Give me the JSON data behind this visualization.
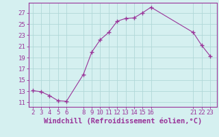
{
  "x": [
    2,
    3,
    4,
    5,
    6,
    8,
    9,
    10,
    11,
    12,
    13,
    14,
    15,
    16,
    21,
    22,
    23
  ],
  "y": [
    13.1,
    12.9,
    12.2,
    11.3,
    11.2,
    16.0,
    20.0,
    22.2,
    23.5,
    25.5,
    26.0,
    26.1,
    27.0,
    28.0,
    23.5,
    21.2,
    19.3
  ],
  "line_color": "#993399",
  "marker_color": "#993399",
  "bg_color": "#d5f0f0",
  "grid_color": "#b0d8d8",
  "tick_color": "#993399",
  "xlabel": "Windchill (Refroidissement éolien,°C)",
  "xlim": [
    1.5,
    23.8
  ],
  "ylim": [
    10.2,
    28.8
  ],
  "yticks": [
    11,
    13,
    15,
    17,
    19,
    21,
    23,
    25,
    27
  ],
  "xticks": [
    2,
    3,
    4,
    5,
    6,
    8,
    9,
    10,
    11,
    12,
    13,
    14,
    15,
    16,
    21,
    22,
    23
  ],
  "xlabel_color": "#993399",
  "xlabel_fontsize": 7.5,
  "tick_fontsize": 6.5
}
